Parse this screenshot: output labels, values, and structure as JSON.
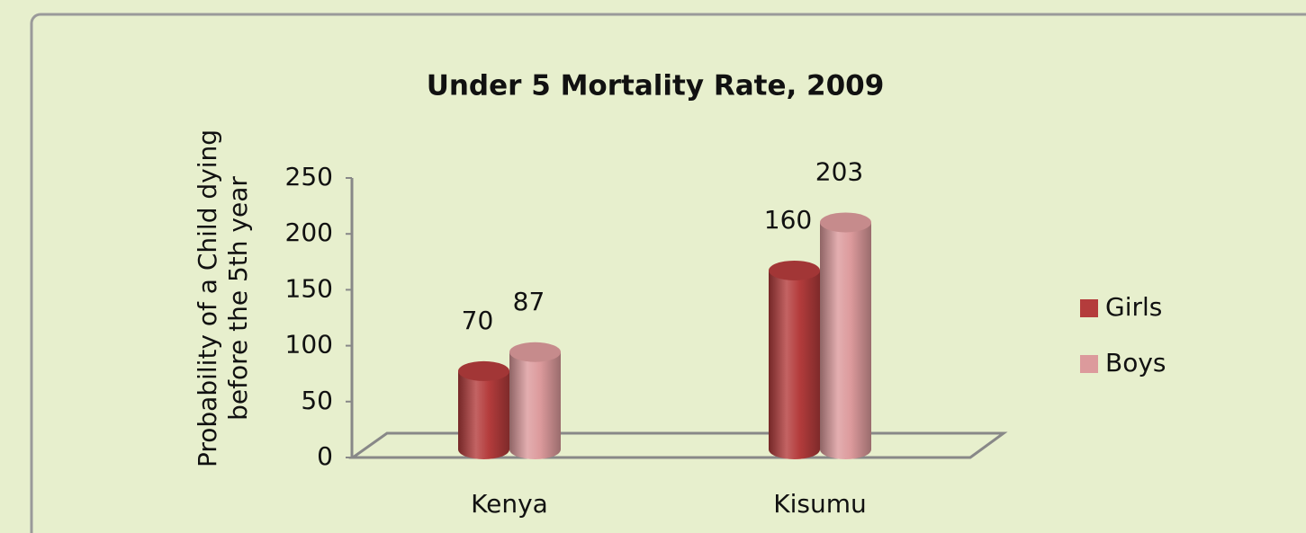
{
  "chart_data": {
    "type": "bar3d",
    "title": "Under 5 Mortality Rate, 2009",
    "ylabel": [
      "Probability of a Child dying",
      "before the 5th year"
    ],
    "categories": [
      "Kenya",
      "Kisumu"
    ],
    "series": [
      {
        "name": "Girls",
        "color": "#b43c3c",
        "values": [
          70,
          160
        ]
      },
      {
        "name": "Boys",
        "color": "#dc9a9c",
        "values": [
          87,
          203
        ]
      }
    ],
    "ylim": [
      0,
      250
    ],
    "yticks": [
      0,
      50,
      100,
      150,
      200,
      250
    ],
    "legend": "right"
  }
}
